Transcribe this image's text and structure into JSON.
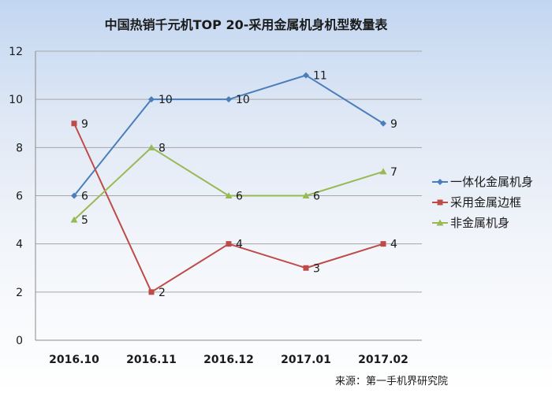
{
  "chart_data": {
    "type": "line",
    "title": "中国热销千元机TOP 20-采用金属机身机型数量表",
    "categories": [
      "2016.10",
      "2016.11",
      "2016.12",
      "2017.01",
      "2017.02"
    ],
    "ylim": [
      0,
      12
    ],
    "yticks": [
      0,
      2,
      4,
      6,
      8,
      10,
      12
    ],
    "grid": true,
    "legend_position": "right",
    "series": [
      {
        "name": "一体化金属机身",
        "values": [
          6,
          10,
          10,
          11,
          9
        ],
        "color": "#4a7ebb",
        "marker": "diamond"
      },
      {
        "name": "采用金属边框",
        "values": [
          9,
          2,
          4,
          3,
          4
        ],
        "color": "#be4b48",
        "marker": "square"
      },
      {
        "name": "非金属机身",
        "values": [
          5,
          8,
          6,
          6,
          7
        ],
        "color": "#98b954",
        "marker": "triangle"
      }
    ],
    "source": "来源：第一手机界研究院"
  }
}
